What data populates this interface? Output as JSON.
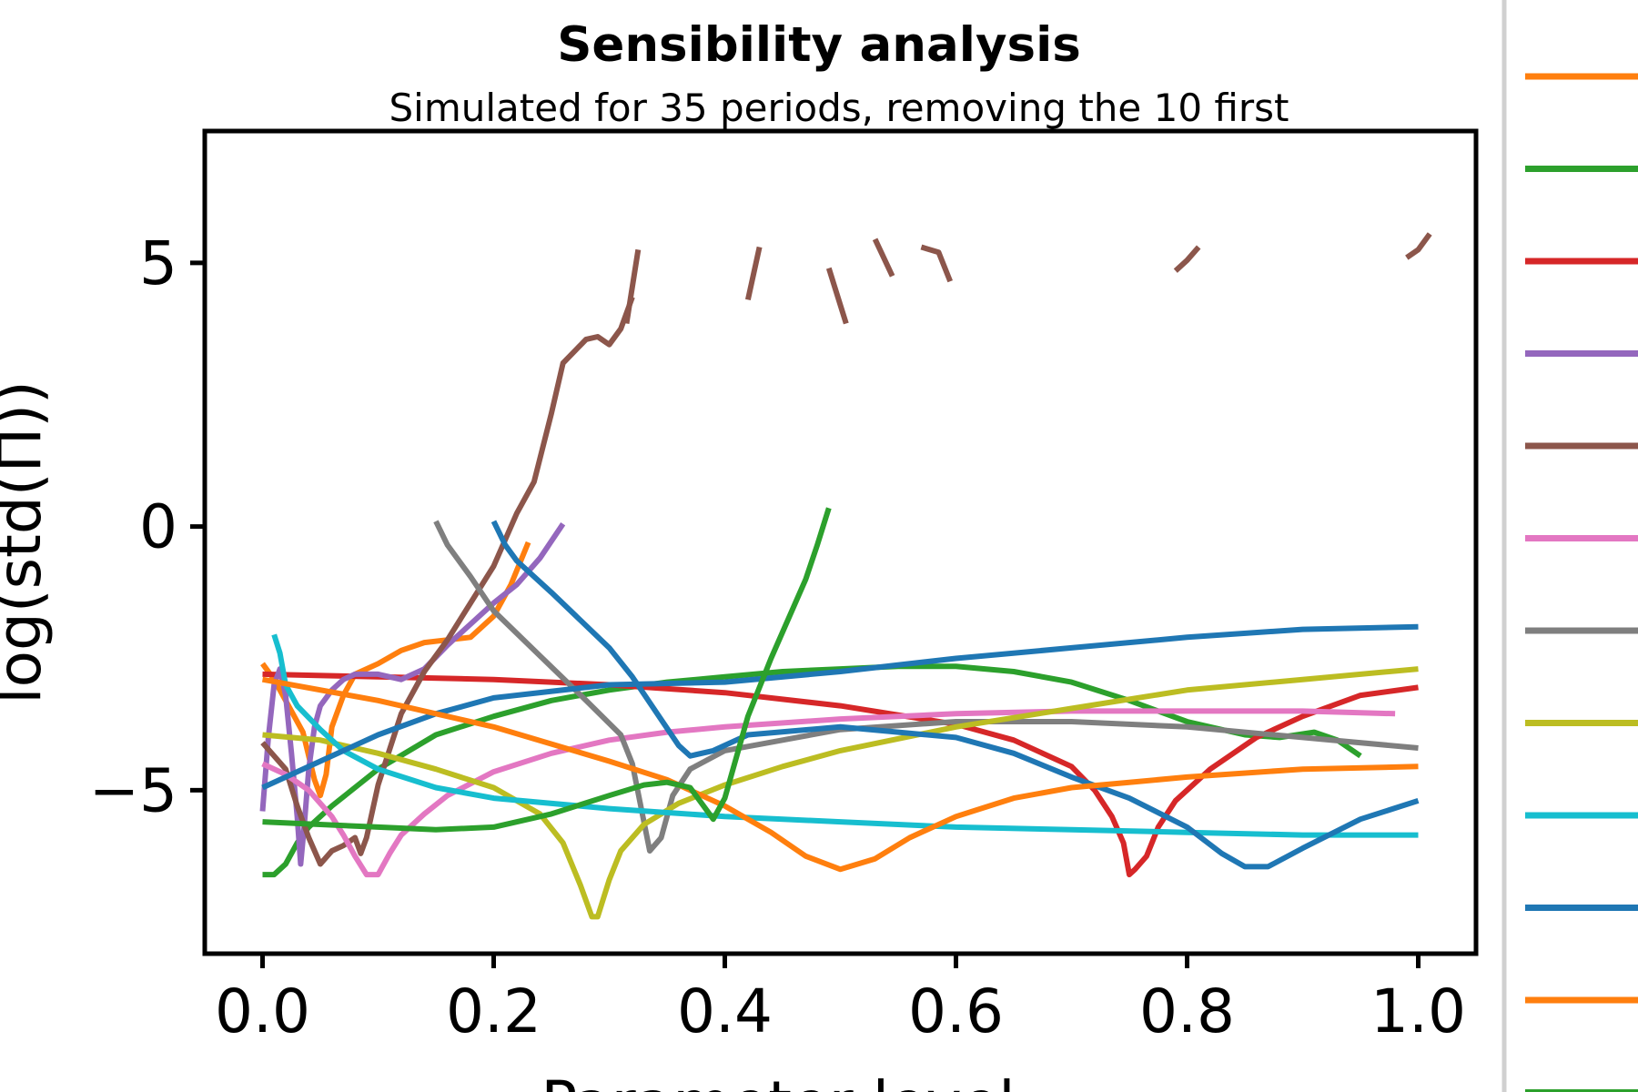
{
  "chart_data": {
    "type": "line",
    "title": "Sensibility analysis",
    "subtitle": "Simulated for 35 periods, removing the 10 first",
    "xlabel": "Parameter level",
    "ylabel": "log(std(Π))",
    "xlim": [
      -0.05,
      1.05
    ],
    "ylim": [
      -8.1,
      7.5
    ],
    "xticks": [
      "0.0",
      "0.2",
      "0.4",
      "0.6",
      "0.8",
      "1.0"
    ],
    "yticks": [
      "−5",
      "0",
      "5"
    ],
    "grid": false,
    "legend": "right, clipped",
    "series": [
      {
        "color": "#ff7f0e",
        "points": [
          [
            0.0,
            -2.6
          ],
          [
            0.01,
            -2.9
          ],
          [
            0.02,
            -3.3
          ],
          [
            0.035,
            -3.9
          ],
          [
            0.045,
            -4.8
          ],
          [
            0.05,
            -5.1
          ],
          [
            0.055,
            -4.7
          ],
          [
            0.06,
            -3.8
          ],
          [
            0.07,
            -3.2
          ],
          [
            0.08,
            -2.8
          ],
          [
            0.1,
            -2.6
          ],
          [
            0.12,
            -2.35
          ],
          [
            0.14,
            -2.2
          ],
          [
            0.16,
            -2.15
          ],
          [
            0.18,
            -2.1
          ],
          [
            0.2,
            -1.7
          ],
          [
            0.215,
            -1.1
          ],
          [
            0.23,
            -0.3
          ]
        ]
      },
      {
        "color": "#2ca02c",
        "points": [
          [
            0.0,
            -6.6
          ],
          [
            0.01,
            -6.6
          ],
          [
            0.02,
            -6.4
          ],
          [
            0.03,
            -6.0
          ],
          [
            0.04,
            -5.7
          ],
          [
            0.06,
            -5.3
          ],
          [
            0.1,
            -4.6
          ],
          [
            0.15,
            -3.95
          ],
          [
            0.2,
            -3.6
          ],
          [
            0.25,
            -3.3
          ],
          [
            0.3,
            -3.1
          ],
          [
            0.35,
            -2.95
          ],
          [
            0.4,
            -2.85
          ],
          [
            0.45,
            -2.75
          ],
          [
            0.5,
            -2.7
          ],
          [
            0.55,
            -2.65
          ],
          [
            0.6,
            -2.65
          ],
          [
            0.65,
            -2.75
          ],
          [
            0.7,
            -2.95
          ],
          [
            0.75,
            -3.3
          ],
          [
            0.8,
            -3.7
          ],
          [
            0.85,
            -3.95
          ],
          [
            0.88,
            -4.0
          ],
          [
            0.91,
            -3.9
          ],
          [
            0.93,
            -4.05
          ],
          [
            0.95,
            -4.35
          ]
        ]
      },
      {
        "color": "#d62728",
        "points": [
          [
            0.0,
            -2.8
          ],
          [
            0.1,
            -2.85
          ],
          [
            0.2,
            -2.9
          ],
          [
            0.3,
            -3.0
          ],
          [
            0.4,
            -3.15
          ],
          [
            0.5,
            -3.4
          ],
          [
            0.6,
            -3.75
          ],
          [
            0.65,
            -4.05
          ],
          [
            0.7,
            -4.55
          ],
          [
            0.72,
            -5.0
          ],
          [
            0.735,
            -5.5
          ],
          [
            0.745,
            -6.0
          ],
          [
            0.75,
            -6.6
          ],
          [
            0.755,
            -6.5
          ],
          [
            0.765,
            -6.25
          ],
          [
            0.775,
            -5.7
          ],
          [
            0.79,
            -5.2
          ],
          [
            0.82,
            -4.6
          ],
          [
            0.86,
            -4.0
          ],
          [
            0.9,
            -3.6
          ],
          [
            0.95,
            -3.2
          ],
          [
            1.0,
            -3.05
          ]
        ]
      },
      {
        "color": "#9467bd",
        "points": [
          [
            0.0,
            -5.4
          ],
          [
            0.005,
            -4.0
          ],
          [
            0.01,
            -3.0
          ],
          [
            0.015,
            -2.7
          ],
          [
            0.02,
            -3.2
          ],
          [
            0.025,
            -4.3
          ],
          [
            0.03,
            -5.5
          ],
          [
            0.033,
            -6.4
          ],
          [
            0.036,
            -5.7
          ],
          [
            0.04,
            -4.6
          ],
          [
            0.045,
            -3.8
          ],
          [
            0.05,
            -3.4
          ],
          [
            0.06,
            -3.1
          ],
          [
            0.07,
            -2.9
          ],
          [
            0.08,
            -2.8
          ],
          [
            0.1,
            -2.8
          ],
          [
            0.12,
            -2.9
          ],
          [
            0.14,
            -2.7
          ],
          [
            0.16,
            -2.25
          ],
          [
            0.18,
            -1.85
          ],
          [
            0.2,
            -1.45
          ],
          [
            0.22,
            -1.1
          ],
          [
            0.24,
            -0.6
          ],
          [
            0.26,
            0.05
          ]
        ]
      },
      {
        "color": "#8c564b",
        "points": [
          [
            0.0,
            -4.1
          ],
          [
            0.02,
            -4.6
          ],
          [
            0.03,
            -5.3
          ],
          [
            0.04,
            -5.9
          ],
          [
            0.05,
            -6.4
          ],
          [
            0.06,
            -6.15
          ],
          [
            0.07,
            -6.05
          ],
          [
            0.08,
            -5.9
          ],
          [
            0.085,
            -6.2
          ],
          [
            0.09,
            -5.9
          ],
          [
            0.1,
            -4.9
          ],
          [
            0.12,
            -3.55
          ],
          [
            0.14,
            -2.75
          ],
          [
            0.16,
            -2.15
          ],
          [
            0.18,
            -1.45
          ],
          [
            0.2,
            -0.75
          ],
          [
            0.22,
            0.25
          ],
          [
            0.235,
            0.85
          ],
          [
            0.25,
            2.15
          ],
          [
            0.26,
            3.1
          ],
          [
            0.28,
            3.55
          ],
          [
            0.29,
            3.6
          ],
          [
            0.3,
            3.45
          ],
          [
            0.31,
            3.75
          ],
          [
            0.32,
            4.35
          ]
        ]
      },
      {
        "color": "#8c564b",
        "points": [
          [
            0.315,
            3.85
          ],
          [
            0.325,
            5.25
          ]
        ]
      },
      {
        "color": "#8c564b",
        "points": [
          [
            0.42,
            4.3
          ],
          [
            0.43,
            5.3
          ]
        ]
      },
      {
        "color": "#8c564b",
        "points": [
          [
            0.49,
            4.9
          ],
          [
            0.505,
            3.85
          ]
        ]
      },
      {
        "color": "#8c564b",
        "points": [
          [
            0.53,
            5.45
          ],
          [
            0.545,
            4.75
          ]
        ]
      },
      {
        "color": "#8c564b",
        "points": [
          [
            0.57,
            5.3
          ],
          [
            0.585,
            5.2
          ],
          [
            0.595,
            4.65
          ]
        ]
      },
      {
        "color": "#8c564b",
        "points": [
          [
            0.79,
            4.85
          ],
          [
            0.8,
            5.05
          ],
          [
            0.81,
            5.3
          ]
        ]
      },
      {
        "color": "#8c564b",
        "points": [
          [
            0.99,
            5.1
          ],
          [
            1.0,
            5.25
          ],
          [
            1.01,
            5.55
          ]
        ]
      },
      {
        "color": "#e377c2",
        "points": [
          [
            0.0,
            -4.5
          ],
          [
            0.02,
            -4.7
          ],
          [
            0.04,
            -5.0
          ],
          [
            0.06,
            -5.5
          ],
          [
            0.07,
            -5.85
          ],
          [
            0.08,
            -6.25
          ],
          [
            0.09,
            -6.6
          ],
          [
            0.1,
            -6.6
          ],
          [
            0.11,
            -6.2
          ],
          [
            0.12,
            -5.85
          ],
          [
            0.14,
            -5.45
          ],
          [
            0.16,
            -5.1
          ],
          [
            0.2,
            -4.65
          ],
          [
            0.25,
            -4.3
          ],
          [
            0.3,
            -4.05
          ],
          [
            0.35,
            -3.9
          ],
          [
            0.4,
            -3.8
          ],
          [
            0.5,
            -3.65
          ],
          [
            0.6,
            -3.55
          ],
          [
            0.7,
            -3.5
          ],
          [
            0.8,
            -3.5
          ],
          [
            0.9,
            -3.5
          ],
          [
            0.98,
            -3.55
          ]
        ]
      },
      {
        "color": "#7f7f7f",
        "points": [
          [
            0.15,
            0.1
          ],
          [
            0.16,
            -0.35
          ],
          [
            0.18,
            -0.95
          ],
          [
            0.2,
            -1.6
          ],
          [
            0.24,
            -2.45
          ],
          [
            0.28,
            -3.3
          ],
          [
            0.31,
            -3.95
          ],
          [
            0.32,
            -4.5
          ],
          [
            0.33,
            -5.6
          ],
          [
            0.335,
            -6.15
          ],
          [
            0.345,
            -5.9
          ],
          [
            0.355,
            -5.1
          ],
          [
            0.37,
            -4.6
          ],
          [
            0.4,
            -4.25
          ],
          [
            0.45,
            -4.05
          ],
          [
            0.5,
            -3.85
          ],
          [
            0.6,
            -3.7
          ],
          [
            0.7,
            -3.7
          ],
          [
            0.8,
            -3.8
          ],
          [
            0.9,
            -4.0
          ],
          [
            1.0,
            -4.2
          ]
        ]
      },
      {
        "color": "#bcbd22",
        "points": [
          [
            0.0,
            -3.95
          ],
          [
            0.05,
            -4.05
          ],
          [
            0.1,
            -4.3
          ],
          [
            0.15,
            -4.6
          ],
          [
            0.2,
            -4.95
          ],
          [
            0.24,
            -5.45
          ],
          [
            0.26,
            -6.0
          ],
          [
            0.275,
            -6.8
          ],
          [
            0.285,
            -7.4
          ],
          [
            0.29,
            -7.4
          ],
          [
            0.3,
            -6.7
          ],
          [
            0.31,
            -6.15
          ],
          [
            0.33,
            -5.65
          ],
          [
            0.36,
            -5.25
          ],
          [
            0.4,
            -4.9
          ],
          [
            0.45,
            -4.55
          ],
          [
            0.5,
            -4.25
          ],
          [
            0.6,
            -3.8
          ],
          [
            0.7,
            -3.45
          ],
          [
            0.8,
            -3.1
          ],
          [
            0.9,
            -2.9
          ],
          [
            1.0,
            -2.7
          ]
        ]
      },
      {
        "color": "#17becf",
        "points": [
          [
            0.01,
            -2.05
          ],
          [
            0.015,
            -2.4
          ],
          [
            0.02,
            -3.0
          ],
          [
            0.03,
            -3.4
          ],
          [
            0.05,
            -3.85
          ],
          [
            0.07,
            -4.25
          ],
          [
            0.1,
            -4.6
          ],
          [
            0.15,
            -4.95
          ],
          [
            0.2,
            -5.15
          ],
          [
            0.3,
            -5.35
          ],
          [
            0.4,
            -5.5
          ],
          [
            0.5,
            -5.6
          ],
          [
            0.6,
            -5.7
          ],
          [
            0.7,
            -5.75
          ],
          [
            0.8,
            -5.8
          ],
          [
            0.9,
            -5.85
          ],
          [
            1.0,
            -5.85
          ]
        ]
      },
      {
        "color": "#1f77b4",
        "points": [
          [
            0.0,
            -4.95
          ],
          [
            0.05,
            -4.45
          ],
          [
            0.1,
            -3.95
          ],
          [
            0.15,
            -3.55
          ],
          [
            0.2,
            -3.25
          ],
          [
            0.3,
            -3.0
          ],
          [
            0.4,
            -2.95
          ],
          [
            0.5,
            -2.75
          ],
          [
            0.6,
            -2.5
          ],
          [
            0.7,
            -2.3
          ],
          [
            0.8,
            -2.1
          ],
          [
            0.9,
            -1.95
          ],
          [
            1.0,
            -1.9
          ]
        ]
      },
      {
        "color": "#1f77b4",
        "points": [
          [
            0.2,
            0.1
          ],
          [
            0.21,
            -0.35
          ],
          [
            0.22,
            -0.65
          ],
          [
            0.25,
            -1.25
          ],
          [
            0.3,
            -2.3
          ],
          [
            0.32,
            -2.85
          ],
          [
            0.34,
            -3.5
          ],
          [
            0.36,
            -4.15
          ],
          [
            0.37,
            -4.35
          ],
          [
            0.39,
            -4.25
          ],
          [
            0.42,
            -3.95
          ],
          [
            0.5,
            -3.8
          ],
          [
            0.6,
            -4.0
          ],
          [
            0.65,
            -4.3
          ],
          [
            0.7,
            -4.75
          ],
          [
            0.75,
            -5.15
          ],
          [
            0.8,
            -5.7
          ],
          [
            0.83,
            -6.2
          ],
          [
            0.85,
            -6.45
          ],
          [
            0.87,
            -6.45
          ],
          [
            0.9,
            -6.1
          ],
          [
            0.95,
            -5.55
          ],
          [
            1.0,
            -5.2
          ]
        ]
      },
      {
        "color": "#ff7f0e",
        "points": [
          [
            0.0,
            -2.9
          ],
          [
            0.1,
            -3.3
          ],
          [
            0.2,
            -3.8
          ],
          [
            0.3,
            -4.45
          ],
          [
            0.35,
            -4.8
          ],
          [
            0.4,
            -5.3
          ],
          [
            0.44,
            -5.8
          ],
          [
            0.47,
            -6.25
          ],
          [
            0.5,
            -6.5
          ],
          [
            0.53,
            -6.3
          ],
          [
            0.56,
            -5.9
          ],
          [
            0.6,
            -5.5
          ],
          [
            0.65,
            -5.15
          ],
          [
            0.7,
            -4.95
          ],
          [
            0.75,
            -4.85
          ],
          [
            0.8,
            -4.75
          ],
          [
            0.9,
            -4.6
          ],
          [
            1.0,
            -4.55
          ]
        ]
      },
      {
        "color": "#2ca02c",
        "points": [
          [
            0.0,
            -5.6
          ],
          [
            0.1,
            -5.7
          ],
          [
            0.15,
            -5.75
          ],
          [
            0.2,
            -5.7
          ],
          [
            0.25,
            -5.45
          ],
          [
            0.3,
            -5.1
          ],
          [
            0.33,
            -4.9
          ],
          [
            0.35,
            -4.85
          ],
          [
            0.37,
            -4.95
          ],
          [
            0.39,
            -5.55
          ],
          [
            0.4,
            -5.15
          ],
          [
            0.42,
            -3.6
          ],
          [
            0.44,
            -2.5
          ],
          [
            0.47,
            -1.0
          ],
          [
            0.48,
            -0.35
          ],
          [
            0.49,
            0.35
          ]
        ]
      }
    ],
    "legend_entries": [
      {
        "color": "#ff7f0e"
      },
      {
        "color": "#2ca02c"
      },
      {
        "color": "#d62728"
      },
      {
        "color": "#9467bd"
      },
      {
        "color": "#8c564b"
      },
      {
        "color": "#e377c2"
      },
      {
        "color": "#7f7f7f"
      },
      {
        "color": "#bcbd22"
      },
      {
        "color": "#17becf"
      },
      {
        "color": "#1f77b4"
      },
      {
        "color": "#ff7f0e"
      },
      {
        "color": "#2ca02c"
      }
    ]
  }
}
